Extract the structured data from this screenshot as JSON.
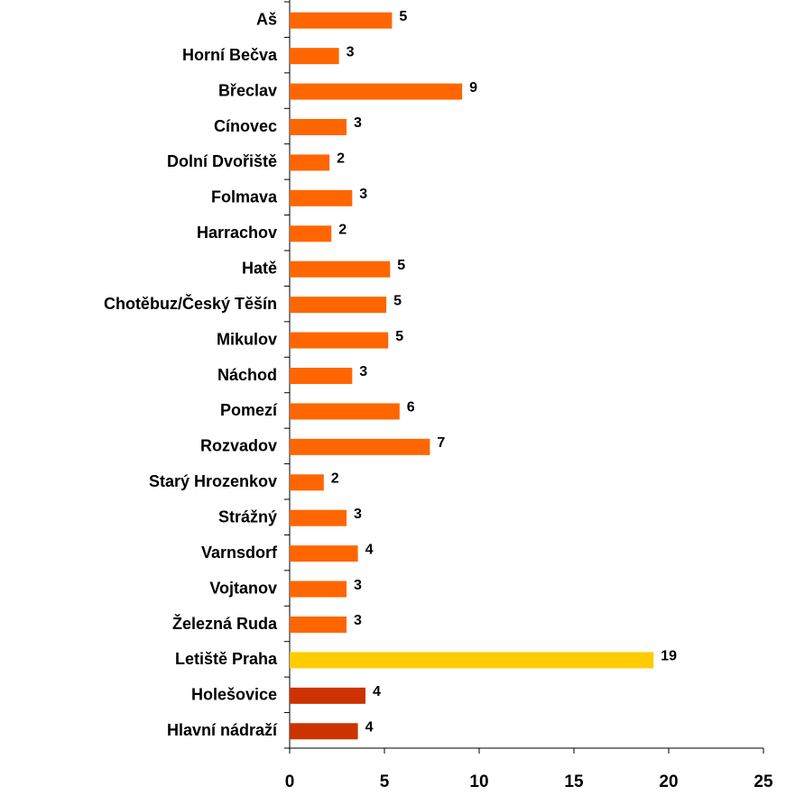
{
  "chart_data": {
    "type": "hbar",
    "categories": [
      "Aš",
      "Horní Bečva",
      "Břeclav",
      "Cínovec",
      "Dolní Dvořiště",
      "Folmava",
      "Harrachov",
      "Hatě",
      "Chotěbuz/Český Těšín",
      "Mikulov",
      "Náchod",
      "Pomezí",
      "Rozvadov",
      "Starý Hrozenkov",
      "Strážný",
      "Varnsdorf",
      "Vojtanov",
      "Železná Ruda",
      "Letiště Praha",
      "Holešovice",
      "Hlavní nádraží"
    ],
    "values": [
      5.4,
      2.6,
      9.1,
      3.0,
      2.1,
      3.3,
      2.2,
      5.3,
      5.1,
      5.2,
      3.3,
      5.8,
      7.4,
      1.8,
      3.0,
      3.6,
      3.0,
      3.0,
      19.2,
      4.0,
      3.6
    ],
    "value_labels": [
      "5",
      "3",
      "9",
      "3",
      "2",
      "3",
      "2",
      "5",
      "5",
      "5",
      "3",
      "6",
      "7",
      "2",
      "3",
      "4",
      "3",
      "3",
      "19",
      "4",
      "4"
    ],
    "colors": [
      "#ff6600",
      "#ff6600",
      "#ff6600",
      "#ff6600",
      "#ff6600",
      "#ff6600",
      "#ff6600",
      "#ff6600",
      "#ff6600",
      "#ff6600",
      "#ff6600",
      "#ff6600",
      "#ff6600",
      "#ff6600",
      "#ff6600",
      "#ff6600",
      "#ff6600",
      "#ff6600",
      "#ffcc00",
      "#cc3300",
      "#cc3300"
    ],
    "xlim": [
      0,
      25
    ],
    "xticks": [
      0,
      5,
      10,
      15,
      20,
      25
    ],
    "grid": false
  }
}
